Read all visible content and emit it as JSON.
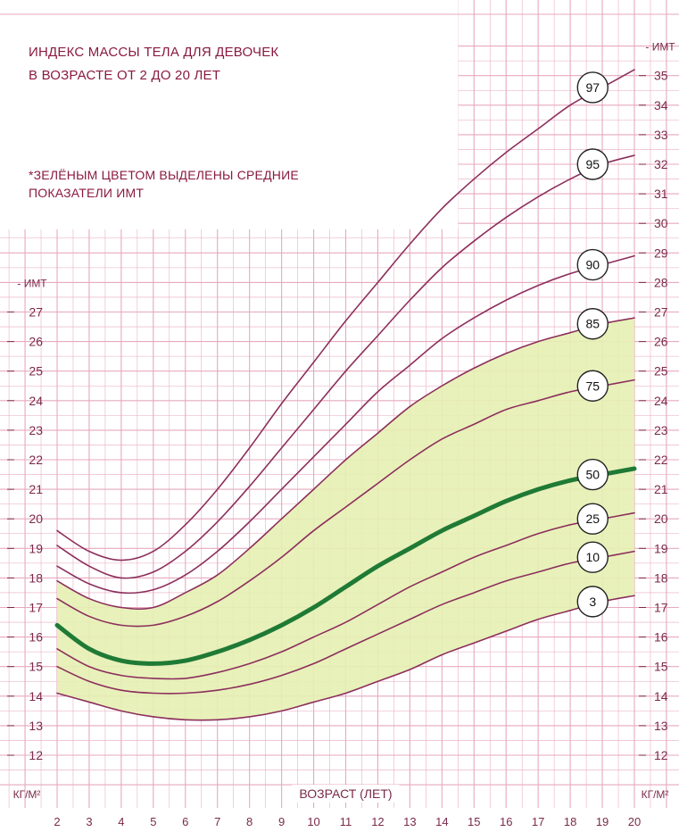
{
  "chart_data": {
    "type": "line",
    "title_lines": [
      "ИНДЕКС МАССЫ ТЕЛА ДЛЯ ДЕВОЧЕК",
      "В ВОЗРАСТЕ ОТ 2 ДО 20 ЛЕТ"
    ],
    "note_lines": [
      "*ЗЕЛЁНЫМ ЦВЕТОМ ВЫДЕЛЕНЫ СРЕДНИЕ",
      "ПОКАЗАТЕЛИ ИМТ"
    ],
    "xlabel": "ВОЗРАСТ (ЛЕТ)",
    "ylabel_bottom": "КГ/М²",
    "ylabel_top": "ИМТ",
    "xlim": [
      2,
      20
    ],
    "ylim": [
      11,
      36
    ],
    "x_ticks": [
      2,
      3,
      4,
      5,
      6,
      7,
      8,
      9,
      10,
      11,
      12,
      13,
      14,
      15,
      16,
      17,
      18,
      19,
      20
    ],
    "y_ticks_left": [
      12,
      13,
      14,
      15,
      16,
      17,
      18,
      19,
      20,
      21,
      22,
      23,
      24,
      25,
      26,
      27
    ],
    "y_ticks_right": [
      12,
      13,
      14,
      15,
      16,
      17,
      18,
      19,
      20,
      21,
      22,
      23,
      24,
      25,
      26,
      27,
      28,
      29,
      30,
      31,
      32,
      33,
      34,
      35
    ],
    "x": [
      2,
      3,
      4,
      5,
      6,
      7,
      8,
      9,
      10,
      11,
      12,
      13,
      14,
      15,
      16,
      17,
      18,
      19,
      20
    ],
    "series": [
      {
        "name": "97",
        "values": [
          19.6,
          18.9,
          18.6,
          18.9,
          19.8,
          21.0,
          22.4,
          23.9,
          25.3,
          26.7,
          28.0,
          29.3,
          30.5,
          31.5,
          32.4,
          33.2,
          34.0,
          34.6,
          35.2
        ]
      },
      {
        "name": "95",
        "values": [
          19.1,
          18.4,
          18.0,
          18.2,
          18.9,
          19.9,
          21.1,
          22.4,
          23.7,
          25.0,
          26.2,
          27.4,
          28.5,
          29.4,
          30.2,
          30.9,
          31.5,
          32.0,
          32.3
        ]
      },
      {
        "name": "90",
        "values": [
          18.4,
          17.8,
          17.5,
          17.6,
          18.1,
          18.9,
          19.9,
          21.0,
          22.1,
          23.2,
          24.3,
          25.2,
          26.1,
          26.8,
          27.4,
          27.9,
          28.3,
          28.6,
          28.9
        ]
      },
      {
        "name": "85",
        "values": [
          17.9,
          17.3,
          17.0,
          17.0,
          17.5,
          18.1,
          19.0,
          20.0,
          21.0,
          22.0,
          22.9,
          23.8,
          24.5,
          25.1,
          25.6,
          26.0,
          26.3,
          26.6,
          26.8
        ]
      },
      {
        "name": "75",
        "values": [
          17.3,
          16.7,
          16.4,
          16.4,
          16.7,
          17.2,
          17.9,
          18.7,
          19.6,
          20.4,
          21.2,
          22.0,
          22.7,
          23.2,
          23.7,
          24.0,
          24.3,
          24.5,
          24.7
        ]
      },
      {
        "name": "50",
        "values": [
          16.4,
          15.6,
          15.2,
          15.1,
          15.2,
          15.5,
          15.9,
          16.4,
          17.0,
          17.7,
          18.4,
          19.0,
          19.6,
          20.1,
          20.6,
          21.0,
          21.3,
          21.5,
          21.7
        ]
      },
      {
        "name": "25",
        "values": [
          15.6,
          15.0,
          14.7,
          14.6,
          14.6,
          14.8,
          15.1,
          15.5,
          16.0,
          16.5,
          17.1,
          17.7,
          18.2,
          18.7,
          19.1,
          19.5,
          19.8,
          20.0,
          20.2
        ]
      },
      {
        "name": "10",
        "values": [
          15.0,
          14.5,
          14.2,
          14.1,
          14.1,
          14.2,
          14.4,
          14.7,
          15.1,
          15.6,
          16.1,
          16.6,
          17.1,
          17.5,
          17.9,
          18.2,
          18.5,
          18.7,
          18.9
        ]
      },
      {
        "name": "3",
        "values": [
          14.1,
          13.8,
          13.5,
          13.3,
          13.2,
          13.2,
          13.3,
          13.5,
          13.8,
          14.1,
          14.5,
          14.9,
          15.4,
          15.8,
          16.2,
          16.6,
          16.9,
          17.2,
          17.4
        ]
      }
    ],
    "green_band": {
      "upper": "85",
      "lower": "3"
    },
    "colors": {
      "grid": "#e7a9be",
      "axis_text": "#7a2a4a",
      "curve": "#8c2f5c",
      "median": "#1f7a35",
      "band": "#e6efb2",
      "background": "#ffffff"
    }
  }
}
